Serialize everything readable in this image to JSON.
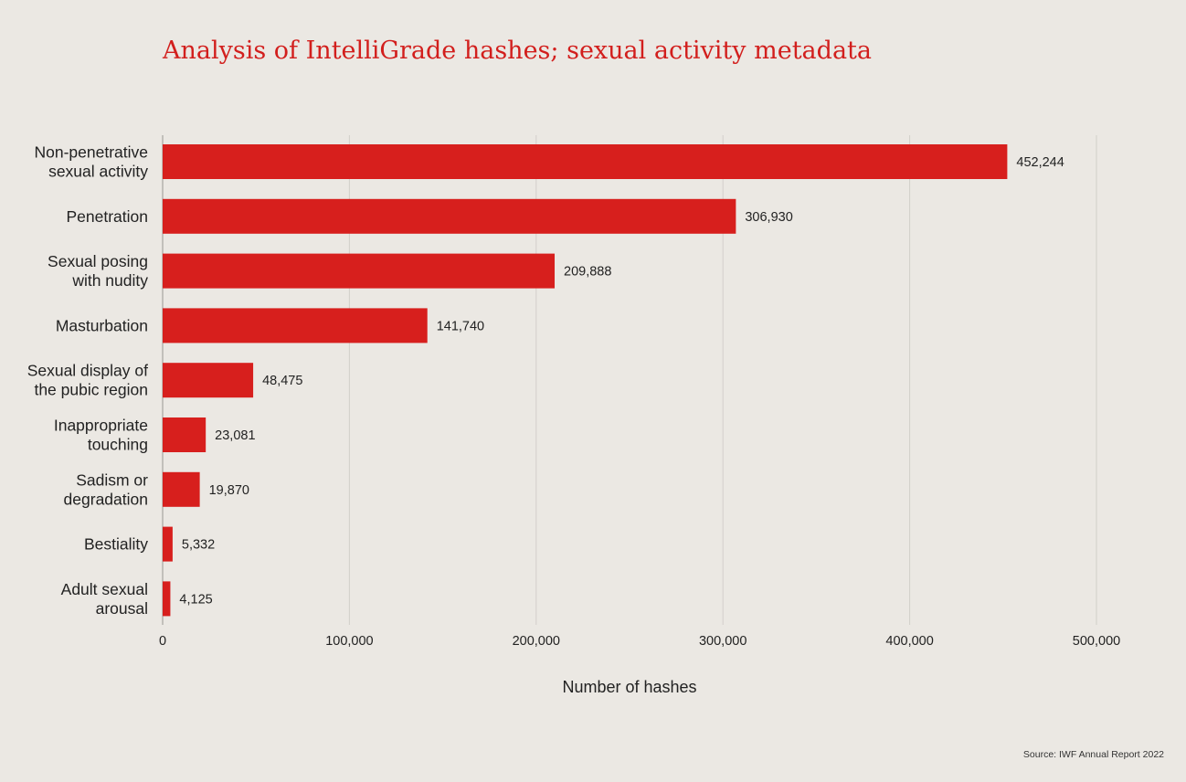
{
  "chart_data": {
    "type": "bar",
    "orientation": "horizontal",
    "title": "Analysis of IntelliGrade hashes; sexual activity metadata",
    "xlabel": "Number of hashes",
    "ylabel": "",
    "xlim": [
      0,
      500000
    ],
    "xticks": [
      0,
      100000,
      200000,
      300000,
      400000,
      500000
    ],
    "xtick_labels": [
      "0",
      "100,000",
      "200,000",
      "300,000",
      "400,000",
      "500,000"
    ],
    "grid": "vertical",
    "categories": [
      [
        "Non-penetrative",
        "sexual activity"
      ],
      [
        "Penetration"
      ],
      [
        "Sexual posing",
        "with nudity"
      ],
      [
        "Masturbation"
      ],
      [
        "Sexual display of",
        "the pubic region"
      ],
      [
        "Inappropriate",
        "touching"
      ],
      [
        "Sadism or",
        "degradation"
      ],
      [
        "Bestiality"
      ],
      [
        "Adult sexual",
        "arousal"
      ]
    ],
    "values": [
      452244,
      306930,
      209888,
      141740,
      48475,
      23081,
      19870,
      5332,
      4125
    ],
    "value_labels": [
      "452,244",
      "306,930",
      "209,888",
      "141,740",
      "48,475",
      "23,081",
      "19,870",
      "5,332",
      "4,125"
    ],
    "bar_color": "#d71f1d",
    "source": "Source: IWF Annual Report 2022"
  },
  "colors": {
    "background": "#ebe8e3",
    "title": "#d21f1d",
    "bar": "#d71f1d",
    "gridline": "#d2cfca",
    "text": "#222222"
  }
}
